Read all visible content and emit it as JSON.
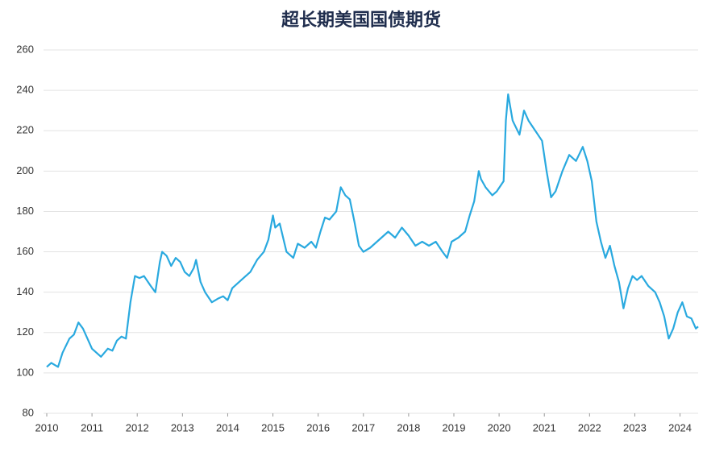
{
  "chart_data": {
    "type": "line",
    "title": "超长期美国国债期货",
    "x": [
      2010.0,
      2010.1,
      2010.25,
      2010.35,
      2010.5,
      2010.6,
      2010.7,
      2010.8,
      2010.9,
      2011.0,
      2011.1,
      2011.2,
      2011.35,
      2011.45,
      2011.55,
      2011.65,
      2011.75,
      2011.85,
      2011.95,
      2012.05,
      2012.15,
      2012.3,
      2012.4,
      2012.5,
      2012.55,
      2012.65,
      2012.75,
      2012.85,
      2012.95,
      2013.05,
      2013.15,
      2013.25,
      2013.3,
      2013.4,
      2013.5,
      2013.65,
      2013.8,
      2013.9,
      2014.0,
      2014.1,
      2014.3,
      2014.5,
      2014.65,
      2014.8,
      2014.9,
      2015.0,
      2015.05,
      2015.15,
      2015.3,
      2015.45,
      2015.55,
      2015.7,
      2015.85,
      2015.95,
      2016.05,
      2016.15,
      2016.25,
      2016.4,
      2016.5,
      2016.6,
      2016.7,
      2016.8,
      2016.9,
      2017.0,
      2017.15,
      2017.3,
      2017.45,
      2017.55,
      2017.7,
      2017.85,
      2018.0,
      2018.15,
      2018.3,
      2018.45,
      2018.6,
      2018.75,
      2018.85,
      2018.95,
      2019.1,
      2019.25,
      2019.35,
      2019.45,
      2019.55,
      2019.6,
      2019.7,
      2019.85,
      2019.95,
      2020.1,
      2020.15,
      2020.2,
      2020.3,
      2020.45,
      2020.55,
      2020.65,
      2020.8,
      2020.95,
      2021.05,
      2021.15,
      2021.25,
      2021.4,
      2021.55,
      2021.7,
      2021.85,
      2021.95,
      2022.05,
      2022.15,
      2022.25,
      2022.35,
      2022.45,
      2022.55,
      2022.65,
      2022.75,
      2022.85,
      2022.95,
      2023.05,
      2023.15,
      2023.3,
      2023.45,
      2023.55,
      2023.65,
      2023.75,
      2023.85,
      2023.95,
      2024.05,
      2024.15,
      2024.25,
      2024.35,
      2024.4
    ],
    "series": [
      {
        "name": "超长期美国国债期货",
        "color": "#29a9df",
        "values": [
          103,
          105,
          103,
          110,
          117,
          119,
          125,
          122,
          117,
          112,
          110,
          108,
          112,
          111,
          116,
          118,
          117,
          135,
          148,
          147,
          148,
          143,
          140,
          155,
          160,
          158,
          153,
          157,
          155,
          150,
          148,
          152,
          156,
          145,
          140,
          135,
          137,
          138,
          136,
          142,
          146,
          150,
          156,
          160,
          166,
          178,
          172,
          174,
          160,
          157,
          164,
          162,
          165,
          162,
          170,
          177,
          176,
          180,
          192,
          188,
          186,
          175,
          163,
          160,
          162,
          165,
          168,
          170,
          167,
          172,
          168,
          163,
          165,
          163,
          165,
          160,
          157,
          165,
          167,
          170,
          178,
          185,
          200,
          196,
          192,
          188,
          190,
          195,
          225,
          238,
          225,
          218,
          230,
          225,
          220,
          215,
          200,
          187,
          190,
          200,
          208,
          205,
          212,
          205,
          195,
          175,
          165,
          157,
          163,
          153,
          145,
          132,
          142,
          148,
          146,
          148,
          143,
          140,
          135,
          128,
          117,
          122,
          130,
          135,
          128,
          127,
          122,
          123
        ]
      }
    ],
    "xlim": [
      2010,
      2024.4
    ],
    "xticks": [
      2010,
      2011,
      2012,
      2013,
      2014,
      2015,
      2016,
      2017,
      2018,
      2019,
      2020,
      2021,
      2022,
      2023,
      2024
    ],
    "ylim": [
      80,
      260
    ],
    "yticks": [
      80,
      100,
      120,
      140,
      160,
      180,
      200,
      220,
      240,
      260
    ],
    "grid": true
  }
}
